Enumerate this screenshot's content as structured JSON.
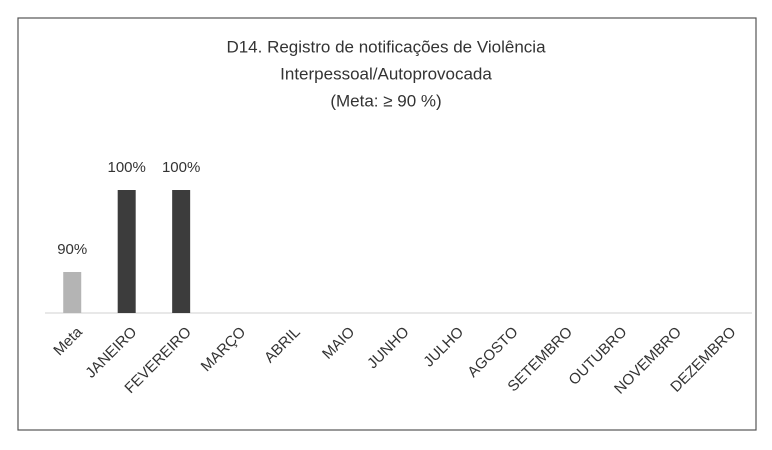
{
  "chart_data": {
    "type": "bar",
    "title": [
      "D14. Registro de notificações de Violência",
      "Interpessoal/Autoprovocada",
      "(Meta: ≥ 90 %)"
    ],
    "categories": [
      "Meta",
      "JANEIRO",
      "FEVEREIRO",
      "MARÇO",
      "ABRIL",
      "MAIO",
      "JUNHO",
      "JULHO",
      "AGOSTO",
      "SETEMBRO",
      "OUTUBRO",
      "NOVEMBRO",
      "DEZEMBRO"
    ],
    "values": [
      90,
      100,
      100,
      null,
      null,
      null,
      null,
      null,
      null,
      null,
      null,
      null,
      null
    ],
    "value_labels": [
      "90%",
      "100%",
      "100%",
      null,
      null,
      null,
      null,
      null,
      null,
      null,
      null,
      null,
      null
    ],
    "colors": [
      "#b4b4b4",
      "#3c3c3c",
      "#3c3c3c",
      "#3c3c3c",
      "#3c3c3c",
      "#3c3c3c",
      "#3c3c3c",
      "#3c3c3c",
      "#3c3c3c",
      "#3c3c3c",
      "#3c3c3c",
      "#3c3c3c",
      "#3c3c3c"
    ],
    "ylim": [
      85,
      100
    ]
  }
}
